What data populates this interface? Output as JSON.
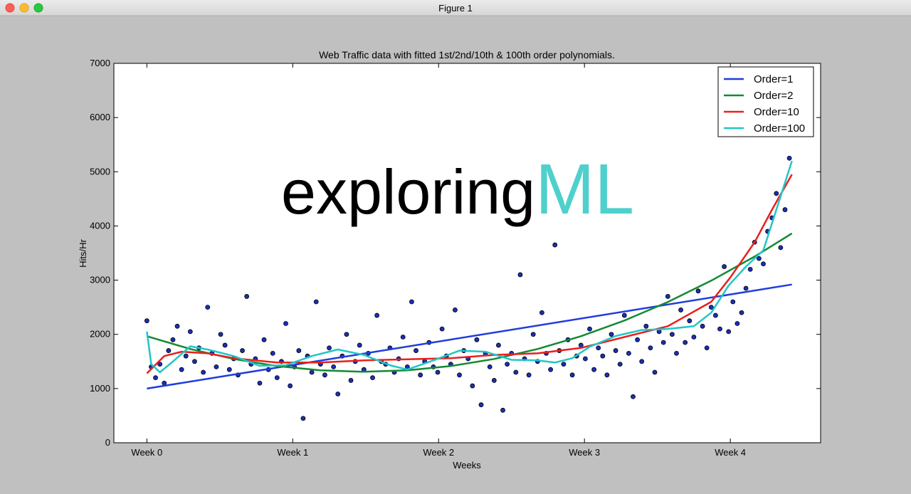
{
  "window_title": "Figure 1",
  "watermark": {
    "text": "exploring",
    "accent": "ML"
  },
  "chart_data": {
    "type": "scatter",
    "title": "Web Traffic data with fitted 1st/2nd/10th & 100th order polynomials.",
    "x_label": "Weeks",
    "y_label": "Hits/Hr",
    "xlim": [
      -38,
      776
    ],
    "ylim": [
      0,
      7000
    ],
    "xticks": [
      {
        "value": 0,
        "label": "Week 0"
      },
      {
        "value": 168,
        "label": "Week 1"
      },
      {
        "value": 336,
        "label": "Week 2"
      },
      {
        "value": 504,
        "label": "Week 3"
      },
      {
        "value": 672,
        "label": "Week 4"
      }
    ],
    "yticks": [
      0,
      1000,
      2000,
      3000,
      4000,
      5000,
      6000,
      7000
    ],
    "grid": false,
    "legend": "upper right",
    "color": "#1a2fb8",
    "x": [
      0,
      5,
      10,
      15,
      20,
      25,
      30,
      35,
      40,
      45,
      50,
      55,
      60,
      65,
      70,
      75,
      80,
      85,
      90,
      95,
      100,
      105,
      110,
      115,
      120,
      125,
      130,
      135,
      140,
      145,
      150,
      155,
      160,
      165,
      170,
      175,
      180,
      185,
      190,
      195,
      200,
      205,
      210,
      215,
      220,
      225,
      230,
      235,
      240,
      245,
      250,
      255,
      260,
      265,
      270,
      275,
      280,
      285,
      290,
      295,
      300,
      305,
      310,
      315,
      320,
      325,
      330,
      335,
      340,
      345,
      350,
      355,
      360,
      365,
      370,
      375,
      380,
      385,
      390,
      395,
      400,
      405,
      410,
      415,
      420,
      425,
      430,
      435,
      440,
      445,
      450,
      455,
      460,
      465,
      470,
      475,
      480,
      485,
      490,
      495,
      500,
      505,
      510,
      515,
      520,
      525,
      530,
      535,
      540,
      545,
      550,
      555,
      560,
      565,
      570,
      575,
      580,
      585,
      590,
      595,
      600,
      605,
      610,
      615,
      620,
      625,
      630,
      635,
      640,
      645,
      650,
      655,
      660,
      665,
      670,
      675,
      680,
      685,
      690,
      695,
      700,
      705,
      710,
      715,
      720,
      725,
      730,
      735,
      740
    ],
    "values": [
      2250,
      1400,
      1200,
      1450,
      1100,
      1700,
      1900,
      2150,
      1350,
      1600,
      2050,
      1500,
      1750,
      1300,
      2500,
      1650,
      1400,
      2000,
      1800,
      1350,
      1550,
      1250,
      1700,
      2700,
      1450,
      1550,
      1100,
      1900,
      1350,
      1650,
      1200,
      1500,
      2200,
      1050,
      1400,
      1700,
      450,
      1600,
      1300,
      2600,
      1450,
      1250,
      1750,
      1400,
      900,
      1600,
      2000,
      1150,
      1500,
      1800,
      1350,
      1650,
      1200,
      2350,
      1500,
      1450,
      1750,
      1300,
      1550,
      1950,
      1400,
      2600,
      1700,
      1250,
      1500,
      1850,
      1400,
      1300,
      2100,
      1600,
      1450,
      2450,
      1250,
      1700,
      1550,
      1050,
      1900,
      700,
      1650,
      1400,
      1150,
      1800,
      600,
      1450,
      1650,
      1300,
      3100,
      1550,
      1250,
      2000,
      1500,
      2400,
      1650,
      1350,
      3650,
      1700,
      1450,
      1900,
      1250,
      1600,
      1800,
      1550,
      2100,
      1350,
      1750,
      1600,
      1250,
      2000,
      1700,
      1450,
      2350,
      1650,
      850,
      1900,
      1500,
      2150,
      1750,
      1300,
      2050,
      1850,
      2700,
      2000,
      1650,
      2450,
      1850,
      2250,
      1950,
      2800,
      2150,
      1750,
      2500,
      2350,
      2100,
      3250,
      2050,
      2600,
      2200,
      2400,
      2850,
      3200,
      3700,
      3400,
      3300,
      3900,
      4150,
      4600,
      3600,
      4300,
      5250
    ],
    "series": [
      {
        "name": "Order=1",
        "color": "#1f3ddc",
        "x": [
          0,
          743
        ],
        "values": [
          1000,
          2920
        ]
      },
      {
        "name": "Order=2",
        "color": "#138a33",
        "x": [
          0,
          50,
          100,
          150,
          200,
          250,
          300,
          350,
          400,
          450,
          500,
          550,
          600,
          650,
          700,
          743
        ],
        "values": [
          1966,
          1730,
          1546,
          1415,
          1336,
          1310,
          1336,
          1415,
          1546,
          1730,
          1966,
          2255,
          2596,
          2990,
          3436,
          3862
        ]
      },
      {
        "name": "Order=10",
        "color": "#e8201f",
        "x": [
          0,
          20,
          40,
          70,
          100,
          150,
          200,
          250,
          300,
          350,
          400,
          450,
          500,
          550,
          600,
          650,
          672,
          700,
          720,
          743
        ],
        "values": [
          1280,
          1600,
          1680,
          1650,
          1560,
          1480,
          1480,
          1520,
          1540,
          1560,
          1620,
          1650,
          1750,
          1950,
          2150,
          2600,
          3050,
          3700,
          4300,
          4950
        ]
      },
      {
        "name": "Order=100",
        "color": "#22c6c6",
        "x": [
          0,
          5,
          15,
          30,
          50,
          70,
          100,
          130,
          160,
          190,
          220,
          250,
          280,
          300,
          330,
          360,
          390,
          420,
          450,
          470,
          490,
          510,
          540,
          570,
          600,
          630,
          650,
          670,
          690,
          710,
          725,
          735,
          743
        ],
        "values": [
          2050,
          1450,
          1300,
          1500,
          1780,
          1720,
          1600,
          1420,
          1430,
          1600,
          1720,
          1620,
          1430,
          1350,
          1520,
          1700,
          1680,
          1530,
          1520,
          1480,
          1560,
          1770,
          1970,
          2080,
          2100,
          2150,
          2400,
          2900,
          3250,
          3550,
          4300,
          4800,
          5200
        ]
      }
    ]
  }
}
